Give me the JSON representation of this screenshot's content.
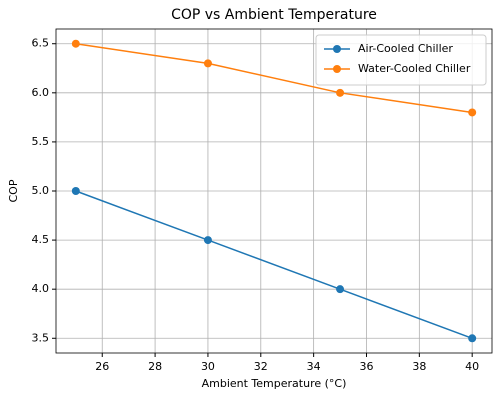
{
  "chart_data": {
    "type": "line",
    "title": "COP vs Ambient Temperature",
    "x_label": "Ambient Temperature (°C)",
    "y_label": "COP",
    "x": [
      25,
      30,
      35,
      40
    ],
    "series": [
      {
        "name": "Air-Cooled Chiller",
        "color": "#1f77b4",
        "values": [
          5.0,
          4.5,
          4.0,
          3.5
        ]
      },
      {
        "name": "Water-Cooled Chiller",
        "color": "#ff7f0e",
        "values": [
          6.5,
          6.3,
          6.0,
          5.8
        ]
      }
    ],
    "xlim": [
      24.25,
      40.75
    ],
    "xticks": [
      26,
      28,
      30,
      32,
      34,
      36,
      38,
      40
    ],
    "ylim": [
      3.35,
      6.65
    ],
    "yticks": [
      3.5,
      {
        "value": 4,
        "label": "4.0"
      },
      4.5,
      {
        "value": 5,
        "label": "5.0"
      },
      5.5,
      {
        "value": 6,
        "label": "6.0"
      },
      6.5
    ],
    "grid": true,
    "legend": "upper right"
  }
}
